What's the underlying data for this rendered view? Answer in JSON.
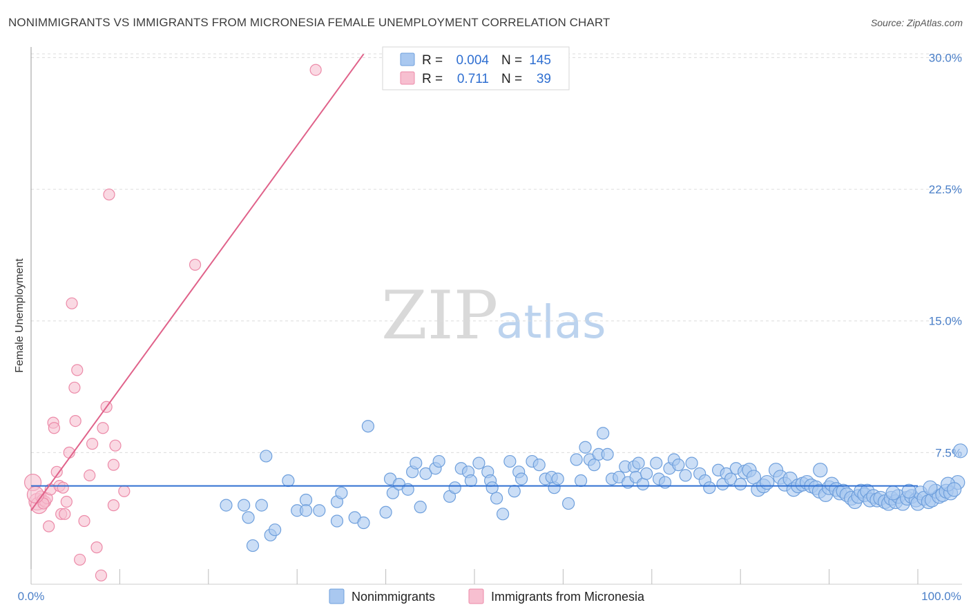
{
  "header": {
    "title": "NONIMMIGRANTS VS IMMIGRANTS FROM MICRONESIA FEMALE UNEMPLOYMENT CORRELATION CHART",
    "source": "Source: ZipAtlas.com"
  },
  "watermark": {
    "part1": "ZIP",
    "part2": "atlas"
  },
  "colors": {
    "blue_fill": "#a9c8f0",
    "blue_stroke": "#6e9fdc",
    "blue_line": "#2f6fd1",
    "pink_fill": "#f7bfd0",
    "pink_stroke": "#ec8aa8",
    "pink_line": "#e0628a",
    "tick_label": "#4a7fc8",
    "grid": "#dcdcdc"
  },
  "legend": {
    "rows": [
      {
        "r_label": "R =",
        "r_value": "0.004",
        "n_label": "N =",
        "n_value": "145"
      },
      {
        "r_label": "R =",
        "r_value": "0.711",
        "n_label": "N =",
        "n_value": "39"
      }
    ]
  },
  "chart_data": {
    "type": "scatter",
    "title": "NONIMMIGRANTS VS IMMIGRANTS FROM MICRONESIA FEMALE UNEMPLOYMENT CORRELATION CHART",
    "xlabel": "",
    "ylabel": "Female Unemployment",
    "xlim": [
      0,
      100
    ],
    "ylim": [
      0,
      31
    ],
    "x_tick_labels": [
      "0.0%",
      "100.0%"
    ],
    "y_ticks": [
      7.5,
      15.0,
      22.5,
      30.0
    ],
    "y_tick_labels": [
      "7.5%",
      "15.0%",
      "22.5%",
      "30.0%"
    ],
    "grid": "horizontal dashed",
    "legend_position": "top-center",
    "series": [
      {
        "name": "Nonimmigrants",
        "color": "#a9c8f0",
        "trend": {
          "x": [
            0,
            100
          ],
          "y": [
            5.6,
            5.6
          ]
        },
        "points": [
          [
            22,
            4.5
          ],
          [
            24.5,
            3.8
          ],
          [
            24,
            4.5
          ],
          [
            25,
            2.2
          ],
          [
            26,
            4.5
          ],
          [
            26.5,
            7.3
          ],
          [
            27,
            2.8
          ],
          [
            27.5,
            3.1
          ],
          [
            29,
            5.9
          ],
          [
            30,
            4.2
          ],
          [
            31,
            4.8
          ],
          [
            31,
            4.2
          ],
          [
            32.5,
            4.2
          ],
          [
            34.5,
            3.6
          ],
          [
            34.5,
            4.7
          ],
          [
            35,
            5.2
          ],
          [
            36.5,
            3.8
          ],
          [
            37.5,
            3.5
          ],
          [
            38,
            9.0
          ],
          [
            40,
            4.1
          ],
          [
            40.5,
            6.0
          ],
          [
            40.8,
            5.2
          ],
          [
            41.5,
            5.7
          ],
          [
            42.5,
            5.4
          ],
          [
            43,
            6.4
          ],
          [
            43.4,
            6.9
          ],
          [
            43.9,
            4.4
          ],
          [
            44.5,
            6.3
          ],
          [
            45.6,
            6.6
          ],
          [
            46,
            7.0
          ],
          [
            47.2,
            5.0
          ],
          [
            47.8,
            5.5
          ],
          [
            48.5,
            6.6
          ],
          [
            49.3,
            6.4
          ],
          [
            49.6,
            5.9
          ],
          [
            50.5,
            6.9
          ],
          [
            51.5,
            6.4
          ],
          [
            51.8,
            5.9
          ],
          [
            52,
            5.5
          ],
          [
            52.5,
            4.9
          ],
          [
            53.2,
            4.0
          ],
          [
            54,
            7.0
          ],
          [
            54.5,
            5.3
          ],
          [
            55,
            6.4
          ],
          [
            55.3,
            6.0
          ],
          [
            56.5,
            7.0
          ],
          [
            57.3,
            6.8
          ],
          [
            58,
            6.0
          ],
          [
            58.7,
            6.1
          ],
          [
            59,
            5.5
          ],
          [
            59.4,
            6.0
          ],
          [
            60.6,
            4.6
          ],
          [
            61.5,
            7.1
          ],
          [
            62,
            5.9
          ],
          [
            62.5,
            7.8
          ],
          [
            63,
            7.1
          ],
          [
            63.5,
            6.8
          ],
          [
            64,
            7.4
          ],
          [
            64.5,
            8.6
          ],
          [
            65,
            7.4
          ],
          [
            65.5,
            6.0
          ],
          [
            66.3,
            6.1
          ],
          [
            67,
            6.7
          ],
          [
            67.3,
            5.8
          ],
          [
            68,
            6.7
          ],
          [
            68.2,
            6.1
          ],
          [
            68.5,
            6.9
          ],
          [
            69,
            5.7
          ],
          [
            69.4,
            6.3
          ],
          [
            70.5,
            6.9
          ],
          [
            70.8,
            6.0
          ],
          [
            71.5,
            5.8
          ],
          [
            72,
            6.6
          ],
          [
            72.5,
            7.1
          ],
          [
            73,
            6.8
          ],
          [
            73.8,
            6.2
          ],
          [
            74.5,
            6.9
          ],
          [
            75.4,
            6.3
          ],
          [
            76,
            5.9
          ],
          [
            76.5,
            5.5
          ],
          [
            77.5,
            6.5
          ],
          [
            78,
            5.7
          ],
          [
            78.4,
            6.3
          ],
          [
            78.9,
            6.0
          ],
          [
            79.5,
            6.6
          ],
          [
            80,
            5.7
          ],
          [
            80.5,
            6.4
          ],
          [
            81,
            6.5
          ],
          [
            81.5,
            6.1
          ],
          [
            82,
            5.4
          ],
          [
            82.6,
            5.6
          ],
          [
            83,
            5.8
          ],
          [
            84,
            6.5
          ],
          [
            84.5,
            6.1
          ],
          [
            85,
            5.7
          ],
          [
            85.6,
            6.0
          ],
          [
            86,
            5.4
          ],
          [
            86.5,
            5.6
          ],
          [
            87,
            5.7
          ],
          [
            87.5,
            5.8
          ],
          [
            88,
            5.6
          ],
          [
            88.5,
            5.5
          ],
          [
            88.9,
            5.3
          ],
          [
            89,
            6.5
          ],
          [
            89.6,
            5.1
          ],
          [
            90,
            5.5
          ],
          [
            90.3,
            5.7
          ],
          [
            90.8,
            5.4
          ],
          [
            91.2,
            5.2
          ],
          [
            91.6,
            5.3
          ],
          [
            92,
            5.1
          ],
          [
            92.5,
            4.9
          ],
          [
            92.9,
            4.7
          ],
          [
            93.3,
            5.0
          ],
          [
            93.6,
            5.3
          ],
          [
            94,
            5.1
          ],
          [
            94.3,
            5.3
          ],
          [
            94.6,
            4.8
          ],
          [
            95,
            5.0
          ],
          [
            95.4,
            4.8
          ],
          [
            95.8,
            4.9
          ],
          [
            96.3,
            4.7
          ],
          [
            96.7,
            4.6
          ],
          [
            97,
            4.9
          ],
          [
            97.5,
            4.7
          ],
          [
            97.8,
            5.0
          ],
          [
            98.3,
            4.6
          ],
          [
            98.8,
            4.9
          ],
          [
            99.3,
            5.0
          ],
          [
            99.8,
            4.8
          ],
          [
            100,
            4.6
          ],
          [
            100.3,
            5.2
          ],
          [
            100.7,
            4.9
          ],
          [
            101.2,
            4.7
          ],
          [
            101.6,
            4.8
          ],
          [
            102,
            5.3
          ],
          [
            102.4,
            5.0
          ],
          [
            102.8,
            5.1
          ],
          [
            103.2,
            5.3
          ],
          [
            103.7,
            5.2
          ],
          [
            104.5,
            5.8
          ],
          [
            104.8,
            7.6
          ],
          [
            103.4,
            5.7
          ],
          [
            104.1,
            5.4
          ],
          [
            97.2,
            5.2
          ],
          [
            99,
            5.3
          ],
          [
            101.4,
            5.5
          ]
        ]
      },
      {
        "name": "Immigrants from Micronesia",
        "color": "#f7bfd0",
        "trend": {
          "x": [
            0,
            37.5
          ],
          "y": [
            4.2,
            30.2
          ]
        },
        "points": [
          [
            0.2,
            5.8
          ],
          [
            0.7,
            4.7
          ],
          [
            0.9,
            4.5
          ],
          [
            1.1,
            5.0
          ],
          [
            1.3,
            4.8
          ],
          [
            1.6,
            4.7
          ],
          [
            1.8,
            4.9
          ],
          [
            2.0,
            3.3
          ],
          [
            2.2,
            5.4
          ],
          [
            2.5,
            9.2
          ],
          [
            2.6,
            8.9
          ],
          [
            2.9,
            6.4
          ],
          [
            3.2,
            5.6
          ],
          [
            3.4,
            4.0
          ],
          [
            3.6,
            5.5
          ],
          [
            3.8,
            4.0
          ],
          [
            4.0,
            4.7
          ],
          [
            4.3,
            7.5
          ],
          [
            4.6,
            16.0
          ],
          [
            4.9,
            11.2
          ],
          [
            5.0,
            9.3
          ],
          [
            5.2,
            12.2
          ],
          [
            5.5,
            1.4
          ],
          [
            6.0,
            3.6
          ],
          [
            6.6,
            6.2
          ],
          [
            6.9,
            8.0
          ],
          [
            7.4,
            2.1
          ],
          [
            7.9,
            0.5
          ],
          [
            8.1,
            8.9
          ],
          [
            8.5,
            10.1
          ],
          [
            8.8,
            22.2
          ],
          [
            9.3,
            6.8
          ],
          [
            9.3,
            4.5
          ],
          [
            9.5,
            7.9
          ],
          [
            10.5,
            5.3
          ],
          [
            18.5,
            18.2
          ],
          [
            32.1,
            29.3
          ],
          [
            1.4,
            4.6
          ],
          [
            0.5,
            5.1
          ]
        ]
      }
    ]
  },
  "bottom_legend": {
    "items": [
      "Nonimmigrants",
      "Immigrants from Micronesia"
    ]
  }
}
